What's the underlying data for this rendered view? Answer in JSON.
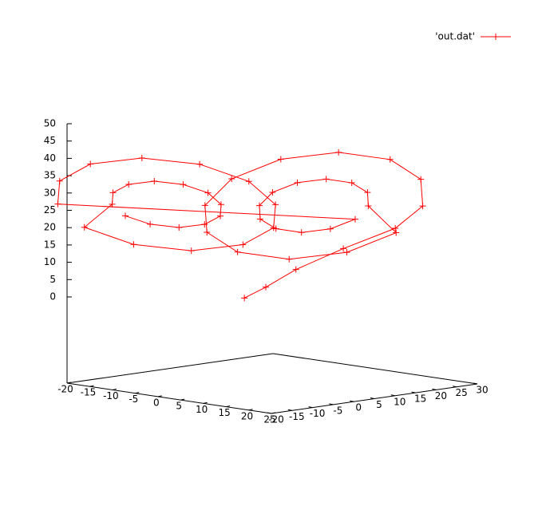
{
  "chart_data": {
    "type": "line3d",
    "xlim": [
      -20,
      25
    ],
    "xticks": [
      -20,
      -15,
      -10,
      -5,
      0,
      5,
      10,
      15,
      20,
      25
    ],
    "ylim": [
      -20,
      30
    ],
    "yticks": [
      -20,
      -15,
      -10,
      -5,
      0,
      5,
      10,
      15,
      20,
      25,
      30
    ],
    "zlim": [
      0,
      50
    ],
    "zticks": [
      0,
      5,
      10,
      15,
      20,
      25,
      30,
      35,
      40,
      45,
      50
    ],
    "legend": "top-right",
    "series": [
      {
        "name": "'out.dat'",
        "color": "#ff0000",
        "x": [
          0,
          2,
          5,
          10,
          16,
          20.5,
          18.9,
          14.5,
          8.5,
          2.5,
          -1.9,
          -3.5,
          -1.9,
          2.5,
          8.5,
          14.5,
          18.9,
          14.5,
          13.7,
          11.5,
          8.5,
          5.5,
          3.3,
          2.5,
          3.3,
          5.5,
          8.5,
          11.5,
          13.7,
          -20.5,
          -18.9,
          -14.5,
          -8.5,
          -2.5,
          1.9,
          3.5,
          1.9,
          -2.5,
          -8.5,
          -14.5,
          -18.9,
          -14.5,
          -13.7,
          -11.5,
          -8.5,
          -5.5,
          -3.3,
          -2.5,
          -3.3,
          -5.5,
          -8.5,
          -11.5,
          -13.7
        ],
        "y": [
          1,
          4,
          8,
          14,
          20,
          21.7,
          23,
          20.4,
          14.5,
          7.1,
          0,
          -4.7,
          -6,
          -3.4,
          2.5,
          9.9,
          17,
          15.1,
          15.8,
          14.4,
          11.5,
          7.8,
          4.2,
          1.9,
          1.2,
          2.6,
          5.5,
          9.2,
          12.8,
          -21.7,
          -23,
          -20.4,
          -14.5,
          -7.1,
          0,
          4.7,
          6,
          3.4,
          -2.5,
          -9.9,
          -17,
          -15.1,
          -15.8,
          -14.4,
          -11.5,
          -7.8,
          -4.2,
          -1.9,
          -1.2,
          -2.6,
          -5.5,
          -9.2,
          -12.8
        ],
        "z": [
          0,
          3,
          8,
          14,
          20,
          27,
          34.2,
          39.5,
          41.4,
          39.5,
          34.2,
          27,
          19.8,
          14.5,
          12.6,
          14.5,
          19.8,
          27,
          30.6,
          33.2,
          34.2,
          33.2,
          30.6,
          27,
          23.4,
          20.8,
          19.8,
          20.8,
          23.4,
          27,
          34.2,
          39.5,
          41.4,
          39.5,
          34.2,
          27,
          19.8,
          14.5,
          12.6,
          14.5,
          19.8,
          27,
          30.6,
          33.2,
          34.2,
          33.2,
          30.6,
          27,
          23.4,
          20.8,
          19.8,
          20.8,
          23.4
        ]
      }
    ]
  }
}
